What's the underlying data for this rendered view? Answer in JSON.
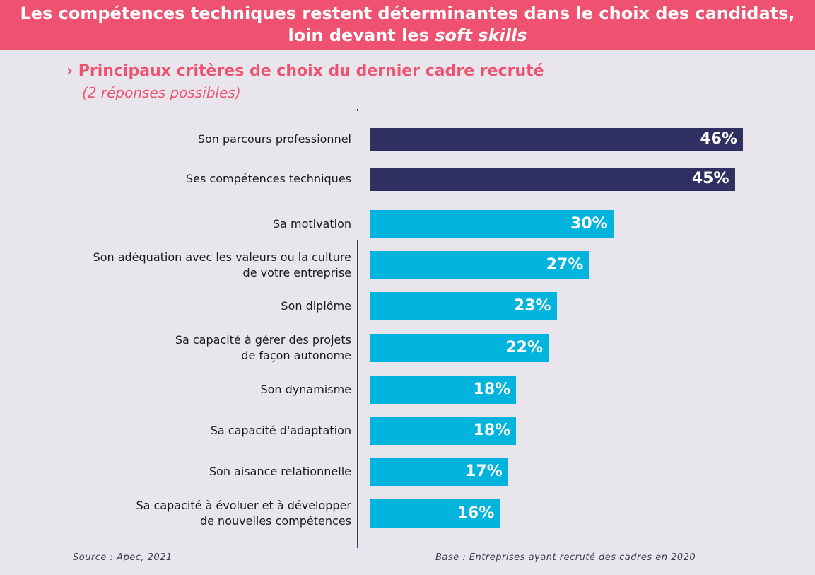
{
  "header": {
    "line1": "Les compétences techniques restent déterminantes dans le choix des candidats,",
    "line2_prefix": "loin devant les ",
    "line2_italic": "soft skills"
  },
  "subtitle": "› Principaux critères de choix du dernier cadre recruté",
  "subnote": "(2 réponses possibles)",
  "footer": {
    "source": "Source : Apec, 2021",
    "base": "Base : Entreprises ayant recruté des cadres en 2020"
  },
  "colors": {
    "banner": "#ef5270",
    "accent_text": "#ef5270",
    "dark_bar": "#302f62",
    "light_bar": "#00b4de",
    "background": "#e8e6ec"
  },
  "chart_data": {
    "type": "bar",
    "orientation": "horizontal",
    "categories": [
      "Son parcours professionnel",
      "Ses compétences techniques",
      "Sa motivation",
      "Son adéquation avec les valeurs ou la culture de votre entreprise",
      "Son diplôme",
      "Sa capacité à gérer des projets de façon autonome",
      "Son dynamisme",
      "Sa capacité d'adaptation",
      "Son aisance relationnelle",
      "Sa capacité à évoluer et à développer de nouvelles compétences"
    ],
    "label_lines": [
      [
        "Son parcours professionnel"
      ],
      [
        "Ses compétences techniques"
      ],
      [
        "Sa motivation"
      ],
      [
        "Son adéquation avec les valeurs ou la culture",
        "de votre entreprise"
      ],
      [
        "Son diplôme"
      ],
      [
        "Sa capacité à gérer des projets",
        "de façon autonome"
      ],
      [
        "Son dynamisme"
      ],
      [
        "Sa capacité d'adaptation"
      ],
      [
        "Son aisance relationnelle"
      ],
      [
        "Sa capacité à évoluer et à développer",
        "de nouvelles compétences"
      ]
    ],
    "values": [
      46,
      45,
      30,
      27,
      23,
      22,
      18,
      18,
      17,
      16
    ],
    "value_labels": [
      "46%",
      "45%",
      "30%",
      "27%",
      "23%",
      "22%",
      "18%",
      "18%",
      "17%",
      "16%"
    ],
    "bar_colors": [
      "dark",
      "dark",
      "light",
      "light",
      "light",
      "light",
      "light",
      "light",
      "light",
      "light"
    ],
    "unit": "%",
    "xlim": [
      0,
      46
    ],
    "grid": false,
    "legend": "none"
  }
}
